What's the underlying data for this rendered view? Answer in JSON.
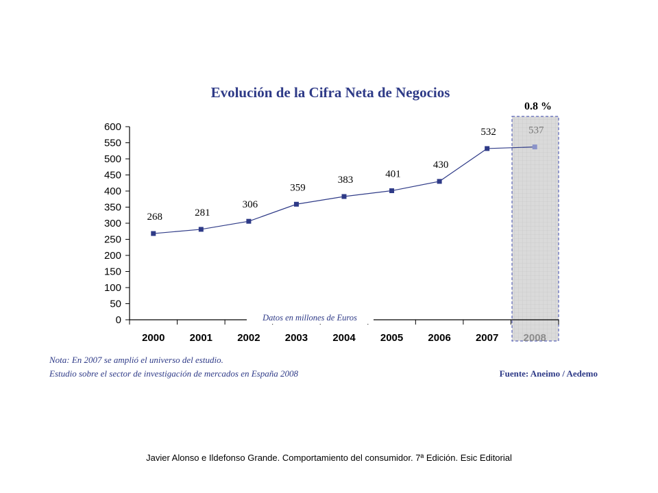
{
  "chart_data": {
    "type": "line",
    "title": "Evolución de la Cifra Neta de Negocios",
    "categories": [
      "2000",
      "2001",
      "2002",
      "2003",
      "2004",
      "2005",
      "2006",
      "2007",
      "2008"
    ],
    "values": [
      268,
      281,
      306,
      359,
      383,
      401,
      430,
      532,
      537
    ],
    "value_labels": [
      "268",
      "281",
      "306",
      "359",
      "383",
      "401",
      "430",
      "532",
      "537"
    ],
    "projected_index": 8,
    "ylim": [
      0,
      600
    ],
    "yticks": [
      "0",
      "50",
      "100",
      "150",
      "200",
      "250",
      "300",
      "350",
      "400",
      "450",
      "500",
      "550",
      "600"
    ],
    "ytick_values": [
      0,
      50,
      100,
      150,
      200,
      250,
      300,
      350,
      400,
      450,
      500,
      550,
      600
    ],
    "growth_label": "0.8 %",
    "units_label": "Datos en millones de Euros",
    "notes": [
      "Nota: En 2007 se amplió el universo del estudio.",
      "Estudio sobre el sector de investigación de mercados en España 2008"
    ],
    "source": "Fuente: Aneimo / Aedemo",
    "colors": {
      "series": "#2e3a87",
      "projected_marker": "#8a93c9",
      "highlight_fill": "#d9d9d9",
      "highlight_border": "#5a64b8"
    }
  },
  "footer": "Javier Alonso e Ildefonso Grande. Comportamiento del consumidor. 7ª Edición. Esic Editorial"
}
